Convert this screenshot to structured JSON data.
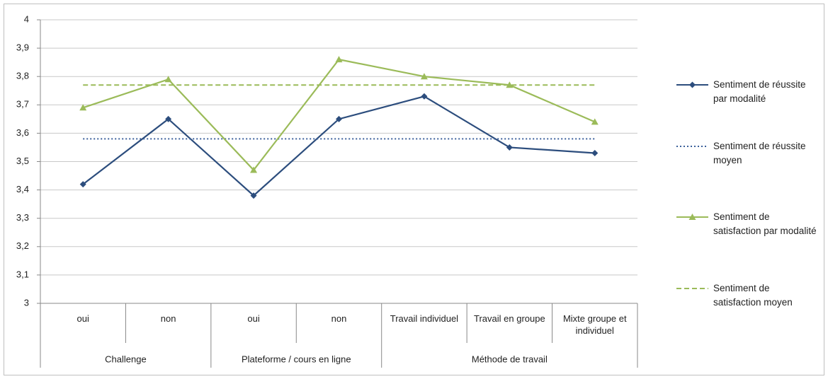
{
  "chart_data": {
    "type": "line",
    "categories": [
      "oui",
      "non",
      "oui",
      "non",
      "Travail individuel",
      "Travail en groupe",
      "Mixte groupe et individuel"
    ],
    "groups": [
      {
        "name": "Challenge",
        "size": 2
      },
      {
        "name": "Plateforme / cours en ligne",
        "size": 2
      },
      {
        "name": "Méthode de travail",
        "size": 3
      }
    ],
    "series": [
      {
        "name": "Sentiment de réussite par modalité",
        "color": "#2c4d7d",
        "dash": "solid",
        "marker": "diamond",
        "values": [
          3.42,
          3.65,
          3.38,
          3.65,
          3.73,
          3.55,
          3.53
        ]
      },
      {
        "name": "Sentiment de réussite moyen",
        "color": "#3a5f9a",
        "dash": "dotted",
        "marker": "none",
        "values": [
          3.58,
          3.58,
          3.58,
          3.58,
          3.58,
          3.58,
          3.58
        ]
      },
      {
        "name": "Sentiment de satisfaction par modalité",
        "color": "#9bbb59",
        "dash": "solid",
        "marker": "triangle",
        "values": [
          3.69,
          3.79,
          3.47,
          3.86,
          3.8,
          3.77,
          3.64
        ]
      },
      {
        "name": "Sentiment de satisfaction moyen",
        "color": "#9bbb59",
        "dash": "dashed",
        "marker": "none",
        "values": [
          3.77,
          3.77,
          3.77,
          3.77,
          3.77,
          3.77,
          3.77
        ]
      }
    ],
    "ylim": [
      3,
      4
    ],
    "yticks": [
      3,
      {
        "value": 3.1,
        "label": "3,1"
      },
      {
        "value": 3.2,
        "label": "3,2"
      },
      {
        "value": 3.3,
        "label": "3,3"
      },
      {
        "value": 3.4,
        "label": "3,4"
      },
      {
        "value": 3.5,
        "label": "3,5"
      },
      {
        "value": 3.6,
        "label": "3,6"
      },
      {
        "value": 3.7,
        "label": "3,7"
      },
      {
        "value": 3.8,
        "label": "3,8"
      },
      {
        "value": 3.9,
        "label": "3,9"
      },
      4
    ],
    "grid": true,
    "legend": "right"
  }
}
